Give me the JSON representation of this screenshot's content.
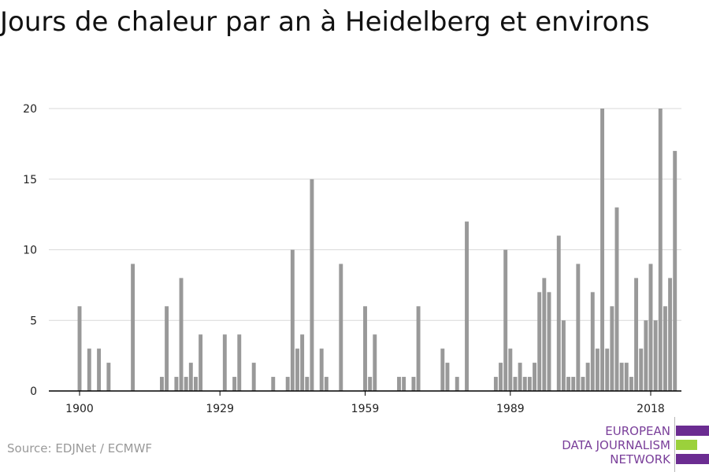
{
  "chart_data": {
    "type": "bar",
    "title": "Jours de chaleur par an à Heidelberg et environs",
    "xlabel": "",
    "ylabel": "",
    "x_range": [
      1900,
      2018
    ],
    "ylim": [
      0,
      20
    ],
    "y_ticks": [
      0,
      5,
      10,
      15,
      20
    ],
    "x_ticks": [
      1900,
      1929,
      1959,
      1989,
      2018
    ],
    "grid": true,
    "bar_color": "#999999",
    "values": [
      6,
      0,
      3,
      0,
      3,
      0,
      2,
      0,
      0,
      0,
      0,
      9,
      0,
      0,
      0,
      0,
      0,
      1,
      6,
      0,
      1,
      8,
      1,
      2,
      1,
      4,
      0,
      0,
      0,
      0,
      4,
      0,
      1,
      4,
      0,
      0,
      2,
      0,
      0,
      0,
      1,
      0,
      0,
      1,
      10,
      3,
      4,
      1,
      15,
      0,
      3,
      1,
      0,
      0,
      9,
      0,
      0,
      0,
      0,
      6,
      1,
      4,
      0,
      0,
      0,
      0,
      1,
      1,
      0,
      1,
      6,
      0,
      0,
      0,
      0,
      3,
      2,
      0,
      1,
      0,
      12,
      0,
      0,
      0,
      0,
      0,
      1,
      2,
      10,
      3,
      1,
      2,
      1,
      1,
      2,
      7,
      8,
      7,
      0,
      11,
      5,
      1,
      1,
      9,
      1,
      2,
      7,
      3,
      20,
      3,
      6,
      13,
      2,
      2,
      1,
      8,
      3,
      5,
      9,
      5,
      20,
      6,
      8,
      17
    ]
  },
  "source": "Source: EDJNet / ECMWF",
  "logo": {
    "line1": "EUROPEAN",
    "line2": "DATA JOURNALISM",
    "line3": "NETWORK",
    "primary_color": "#6b2c91",
    "accent_color": "#9bd13b"
  }
}
